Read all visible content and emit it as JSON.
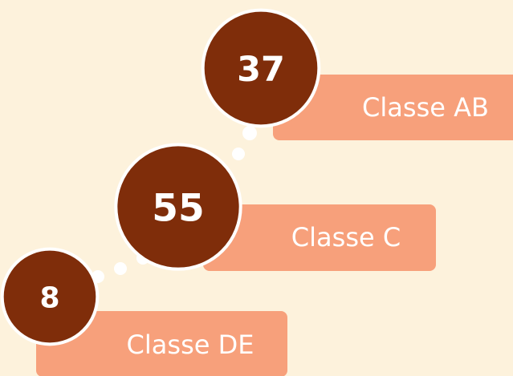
{
  "chart_data": {
    "type": "bubble",
    "categories": [
      "Classe AB",
      "Classe C",
      "Classe DE"
    ],
    "values": [
      37,
      55,
      8
    ],
    "color": "#7f2d0a",
    "label_color": "#f7a07b",
    "background": "#fdf2dc"
  }
}
